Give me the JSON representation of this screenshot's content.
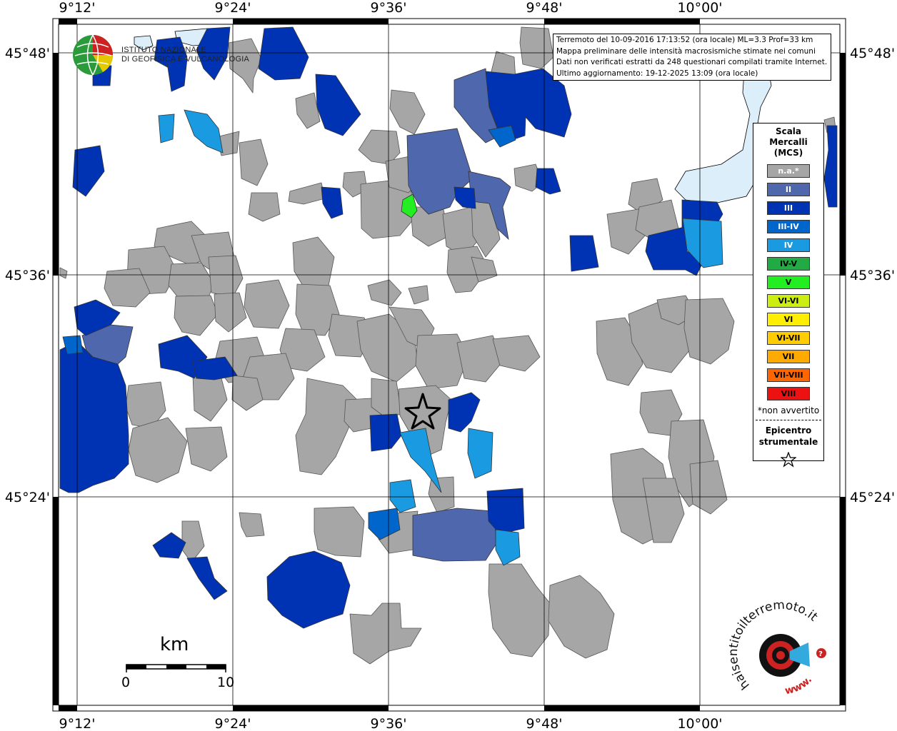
{
  "info_box": {
    "line1": "Terremoto del 10-09-2016 17:13:52 (ora locale) ML=3.3 Prof=33 km",
    "line2": "Mappa preliminare delle intensità macrosismiche stimate nei comuni",
    "line3": "Dati non verificati estratti da 248 questionari compilati tramite Internet.",
    "line4": "Ultimo aggiornamento: 19-12-2025 13:09 (ora locale)"
  },
  "axis": {
    "top": [
      "9°12'",
      "9°24'",
      "9°36'",
      "9°48'",
      "10°00'"
    ],
    "bottom": [
      "9°12'",
      "9°24'",
      "9°36'",
      "9°48'",
      "10°00'"
    ],
    "left": [
      "45°48'",
      "45°36'",
      "45°24'"
    ],
    "right": [
      "45°48'",
      "45°36'",
      "45°24'"
    ]
  },
  "legend": {
    "title_line1": "Scala",
    "title_line2": "Mercalli",
    "title_line3": "(MCS)",
    "items": [
      {
        "label": "n.a.*",
        "color": "#a6a6a6",
        "text_color": "#ffffff"
      },
      {
        "label": "II",
        "color": "#4f67ac",
        "text_color": "#ffffff"
      },
      {
        "label": "III",
        "color": "#0033b3",
        "text_color": "#ffffff"
      },
      {
        "label": "III-IV",
        "color": "#0066cc",
        "text_color": "#ffffff"
      },
      {
        "label": "IV",
        "color": "#1a9ae0",
        "text_color": "#ffffff"
      },
      {
        "label": "IV-V",
        "color": "#22aa44",
        "text_color": "#000000"
      },
      {
        "label": "V",
        "color": "#22ee22",
        "text_color": "#000000"
      },
      {
        "label": "VI-VI",
        "color": "#ccee11",
        "text_color": "#000000"
      },
      {
        "label": "VI",
        "color": "#ffee00",
        "text_color": "#000000"
      },
      {
        "label": "VI-VII",
        "color": "#ffcc00",
        "text_color": "#000000"
      },
      {
        "label": "VII",
        "color": "#ffaa00",
        "text_color": "#000000"
      },
      {
        "label": "VII-VIII",
        "color": "#ff6600",
        "text_color": "#000000"
      },
      {
        "label": "VIII",
        "color": "#ee1111",
        "text_color": "#000000"
      }
    ],
    "note": "*non avvertito",
    "epicenter_line1": "Epicentro",
    "epicenter_line2": "strumentale",
    "epicenter_symbol": "☆"
  },
  "logos": {
    "ingv_line1": "ISTITUTO NAZIONALE",
    "ingv_line2": "DI GEOFISICA E VULCANOLOGIA",
    "hsit_text": "haisentitoilterremoto.it",
    "hsit_url": "www."
  },
  "scale_bar": {
    "unit": "km",
    "start": "0",
    "end": "10"
  },
  "colors": {
    "na": "#a6a6a6",
    "II": "#4f67ac",
    "III": "#0033b3",
    "III-IV": "#0066cc",
    "IV": "#1a9ae0",
    "V": "#22ee22",
    "lake": "#dceefa"
  }
}
